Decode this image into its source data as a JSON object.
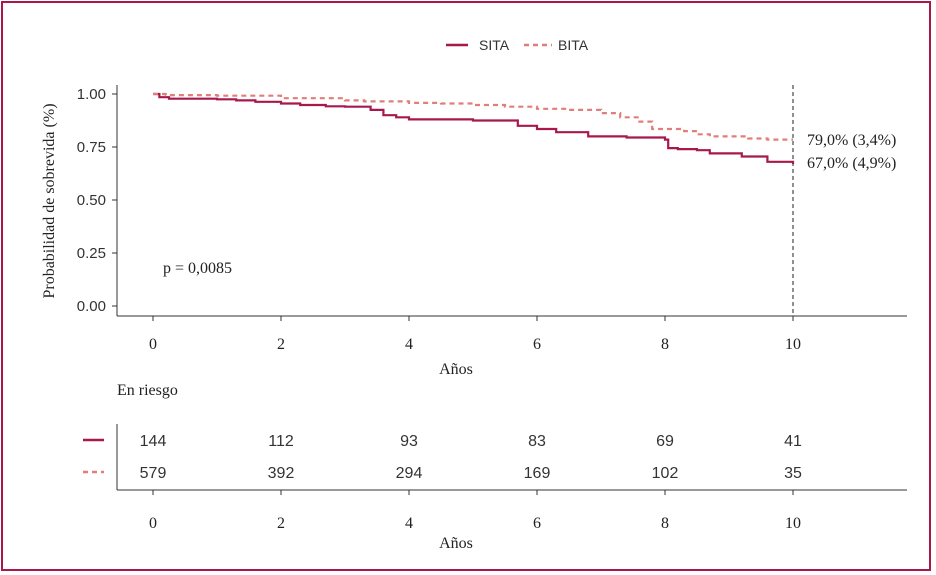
{
  "chart_data": {
    "type": "line",
    "ylabel": "Probabilidad de sobrevida (%)",
    "xlabel": "Años",
    "x_ticks": [
      0,
      2,
      4,
      6,
      8,
      10
    ],
    "y_ticks": [
      "0.00",
      "0.25",
      "0.50",
      "0.75",
      "1.00"
    ],
    "xlim": [
      0,
      11.5
    ],
    "ylim": [
      0,
      1.05
    ],
    "legend_position": "top-center",
    "pvalue_text": "p = 0,0085",
    "reference_line_x": 10,
    "series": [
      {
        "name": "SITA",
        "color": "#a8184c",
        "dash": "solid",
        "end_label": "67,0% (4,9%)",
        "end_value": 0.67,
        "points": [
          [
            0,
            1.0
          ],
          [
            0.1,
            0.985
          ],
          [
            0.25,
            0.978
          ],
          [
            1.0,
            0.975
          ],
          [
            1.3,
            0.97
          ],
          [
            1.6,
            0.963
          ],
          [
            2.0,
            0.955
          ],
          [
            2.3,
            0.948
          ],
          [
            2.7,
            0.942
          ],
          [
            3.0,
            0.94
          ],
          [
            3.2,
            0.94
          ],
          [
            3.4,
            0.925
          ],
          [
            3.6,
            0.9
          ],
          [
            3.8,
            0.89
          ],
          [
            4.0,
            0.88
          ],
          [
            4.6,
            0.88
          ],
          [
            5.0,
            0.875
          ],
          [
            5.5,
            0.875
          ],
          [
            5.7,
            0.85
          ],
          [
            6.0,
            0.835
          ],
          [
            6.3,
            0.82
          ],
          [
            6.8,
            0.8
          ],
          [
            7.4,
            0.795
          ],
          [
            8.0,
            0.785
          ],
          [
            8.05,
            0.745
          ],
          [
            8.2,
            0.74
          ],
          [
            8.5,
            0.735
          ],
          [
            8.7,
            0.72
          ],
          [
            9.2,
            0.705
          ],
          [
            9.6,
            0.68
          ],
          [
            10.0,
            0.67
          ]
        ]
      },
      {
        "name": "BITA",
        "color": "#e07f7a",
        "dash": "dashed",
        "end_label": "79,0% (3,4%)",
        "end_value": 0.79,
        "points": [
          [
            0,
            1.0
          ],
          [
            0.2,
            0.995
          ],
          [
            1.0,
            0.992
          ],
          [
            2.0,
            0.98
          ],
          [
            3.0,
            0.97
          ],
          [
            3.3,
            0.965
          ],
          [
            3.5,
            0.965
          ],
          [
            4.0,
            0.958
          ],
          [
            4.5,
            0.955
          ],
          [
            5.0,
            0.948
          ],
          [
            5.5,
            0.94
          ],
          [
            6.0,
            0.93
          ],
          [
            6.5,
            0.925
          ],
          [
            7.0,
            0.91
          ],
          [
            7.3,
            0.89
          ],
          [
            7.6,
            0.87
          ],
          [
            7.8,
            0.835
          ],
          [
            8.1,
            0.835
          ],
          [
            8.3,
            0.825
          ],
          [
            8.5,
            0.81
          ],
          [
            8.7,
            0.8
          ],
          [
            9.3,
            0.79
          ],
          [
            9.6,
            0.785
          ],
          [
            10.0,
            0.785
          ]
        ]
      }
    ]
  },
  "legend": [
    {
      "label": "SITA",
      "color": "#a8184c",
      "dash": "solid"
    },
    {
      "label": "BITA",
      "color": "#e07f7a",
      "dash": "dashed"
    }
  ],
  "risk_table": {
    "title": "En riesgo",
    "xlabel": "Años",
    "x_ticks": [
      0,
      2,
      4,
      6,
      8,
      10
    ],
    "rows": [
      {
        "series": "SITA",
        "color": "#a8184c",
        "dash": "solid",
        "values": [
          "144",
          "112",
          "93",
          "83",
          "69",
          "41"
        ]
      },
      {
        "series": "BITA",
        "color": "#e07f7a",
        "dash": "dashed",
        "values": [
          "579",
          "392",
          "294",
          "169",
          "102",
          "35"
        ]
      }
    ]
  }
}
